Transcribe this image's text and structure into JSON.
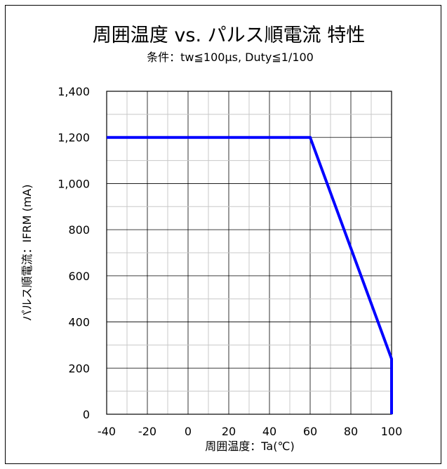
{
  "chart_data": {
    "type": "line",
    "title": "周囲温度 vs. パルス順電流 特性",
    "subtitle": "条件：tw≦100µs, Duty≦1/100",
    "xlabel": "周囲温度：Ta(℃)",
    "ylabel": "パルス順電流：IFRM (mA)",
    "xlim": [
      -40,
      100
    ],
    "ylim": [
      0,
      1400
    ],
    "x_ticks": [
      -40,
      -20,
      0,
      20,
      40,
      60,
      80,
      100
    ],
    "x_tick_labels": [
      "-40",
      "-20",
      "0",
      "20",
      "40",
      "60",
      "80",
      "100"
    ],
    "y_ticks": [
      0,
      200,
      400,
      600,
      800,
      1000,
      1200,
      1400
    ],
    "y_tick_labels": [
      "0",
      "200",
      "400",
      "600",
      "800",
      "1,000",
      "1,200",
      "1,400"
    ],
    "x_minor_step": 10,
    "y_minor_step": 100,
    "grid": true,
    "series": [
      {
        "color": "#0000ff",
        "x": [
          -40,
          60,
          100,
          100
        ],
        "y": [
          1200,
          1200,
          240,
          0
        ]
      }
    ]
  }
}
